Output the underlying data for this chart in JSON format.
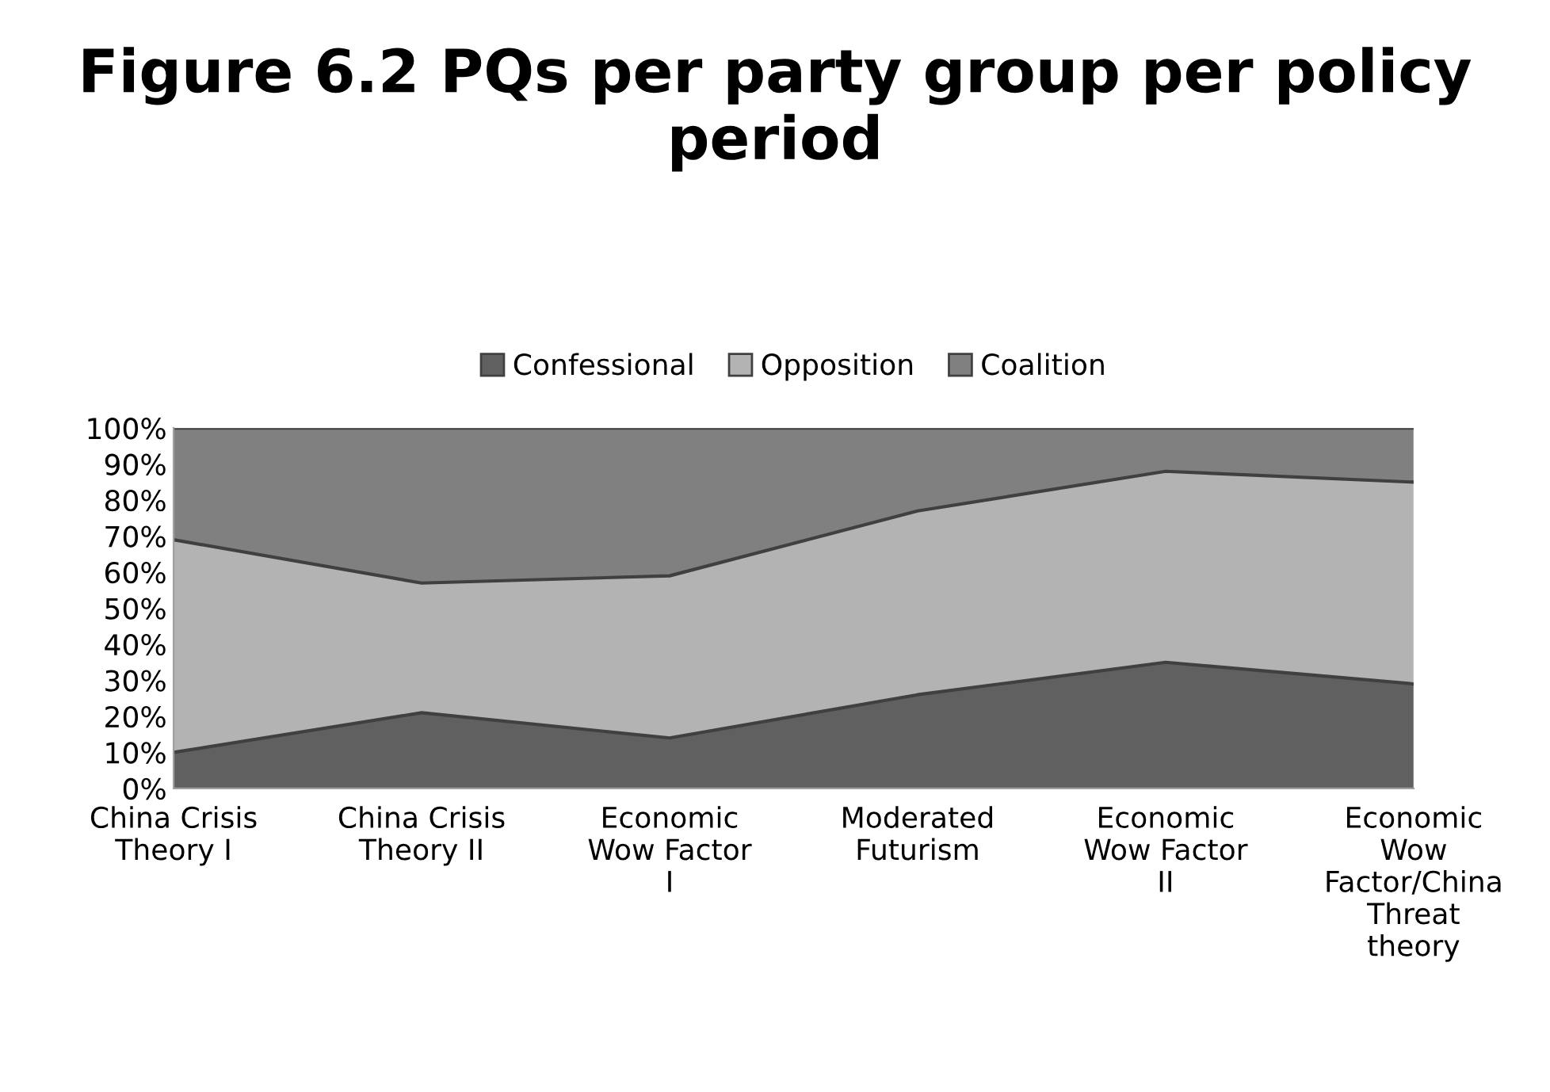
{
  "chart_data": {
    "type": "area",
    "stacked": true,
    "title": "Figure 6.2 PQs per party group per policy period",
    "categories": [
      "China Crisis\nTheory I",
      "China Crisis\nTheory II",
      "Economic\nWow Factor\nI",
      "Moderated\nFuturism",
      "Economic\nWow Factor\nII",
      "Economic\nWow\nFactor/China\nThreat\ntheory"
    ],
    "series": [
      {
        "name": "Confessional",
        "color": "#606060",
        "values": [
          10,
          21,
          14,
          26,
          35,
          29
        ]
      },
      {
        "name": "Opposition",
        "color": "#b3b3b3",
        "values": [
          59,
          36,
          45,
          51,
          53,
          56
        ]
      },
      {
        "name": "Coalition",
        "color": "#808080",
        "values": [
          31,
          43,
          41,
          23,
          12,
          15
        ]
      }
    ],
    "ylim": [
      0,
      100
    ],
    "yticks": [
      {
        "value": 0,
        "label": "0%"
      },
      {
        "value": 10,
        "label": "10%"
      },
      {
        "value": 20,
        "label": "20%"
      },
      {
        "value": 30,
        "label": "30%"
      },
      {
        "value": 40,
        "label": "40%"
      },
      {
        "value": 50,
        "label": "50%"
      },
      {
        "value": 60,
        "label": "60%"
      },
      {
        "value": 70,
        "label": "70%"
      },
      {
        "value": 80,
        "label": "80%"
      },
      {
        "value": 90,
        "label": "90%"
      },
      {
        "value": 100,
        "label": "100%"
      }
    ],
    "grid": false,
    "legend": "top"
  }
}
